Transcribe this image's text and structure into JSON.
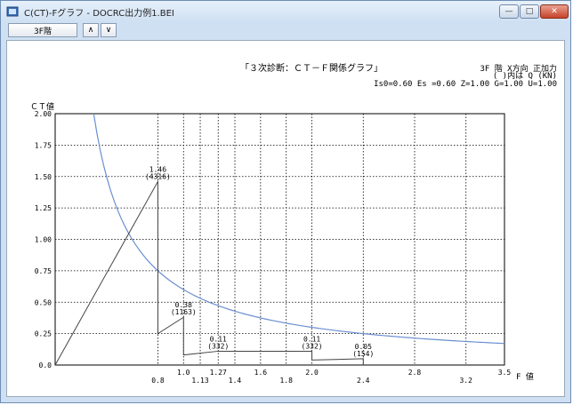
{
  "window": {
    "title": "C(CT)-Fグラフ - DOCRC出力例1.BEI",
    "minimize": "—",
    "maximize": "□",
    "close": "✕"
  },
  "toolbar": {
    "floor_button": "3F階",
    "up_button": "∧",
    "down_button": "∨"
  },
  "graph": {
    "heading": "「３次診断：ＣＴ－Ｆ関係グラフ」",
    "condition_line1": "3F 階 X方向 正加力",
    "condition_line2": "( )内は Q (KN)",
    "params": "Is0=0.60 Es =0.60 Z=1.00 G=1.00 U=1.00",
    "y_axis_label": "ＣＴ値",
    "x_axis_label": "F 値",
    "curve_color": "#6a8fd0"
  },
  "chart_data": {
    "type": "line",
    "xlabel": "F 値",
    "ylabel": "ＣＴ値",
    "xlim": [
      0,
      3.5
    ],
    "ylim": [
      0,
      2.0
    ],
    "grid": true,
    "x_ticks": [
      {
        "v": 0.8,
        "label": "0.8",
        "row": 1
      },
      {
        "v": 1.0,
        "label": "1.0",
        "row": 0
      },
      {
        "v": 1.13,
        "label": "1.13",
        "row": 1
      },
      {
        "v": 1.27,
        "label": "1.27",
        "row": 0
      },
      {
        "v": 1.4,
        "label": "1.4",
        "row": 1
      },
      {
        "v": 1.6,
        "label": "1.6",
        "row": 0
      },
      {
        "v": 1.8,
        "label": "1.8",
        "row": 1
      },
      {
        "v": 2.0,
        "label": "2.0",
        "row": 0
      },
      {
        "v": 2.4,
        "label": "2.4",
        "row": 1
      },
      {
        "v": 2.8,
        "label": "2.8",
        "row": 0
      },
      {
        "v": 3.2,
        "label": "3.2",
        "row": 1
      },
      {
        "v": 3.5,
        "label": "3.5",
        "row": 0
      }
    ],
    "y_ticks": [
      {
        "v": 0.0,
        "label": "0.0"
      },
      {
        "v": 0.25,
        "label": "0.25"
      },
      {
        "v": 0.5,
        "label": "0.50"
      },
      {
        "v": 0.75,
        "label": "0.75"
      },
      {
        "v": 1.0,
        "label": "1.00"
      },
      {
        "v": 1.25,
        "label": "1.25"
      },
      {
        "v": 1.5,
        "label": "1.50"
      },
      {
        "v": 1.75,
        "label": "1.75"
      },
      {
        "v": 2.0,
        "label": "2.00"
      }
    ],
    "demand_curve": {
      "k": 0.6
    },
    "step_polyline": [
      [
        0,
        0
      ],
      [
        0.8,
        1.46
      ],
      [
        0.8,
        0.25
      ],
      [
        1.0,
        0.38
      ],
      [
        1.0,
        0.08
      ],
      [
        1.27,
        0.11
      ],
      [
        2.0,
        0.11
      ],
      [
        2.0,
        0.04
      ],
      [
        2.4,
        0.05
      ],
      [
        2.4,
        0.0
      ]
    ],
    "annotations": [
      {
        "x": 0.8,
        "y": 1.46,
        "value": "1.46",
        "q": "(4316)"
      },
      {
        "x": 1.0,
        "y": 0.38,
        "value": "0.38",
        "q": "(1163)"
      },
      {
        "x": 1.27,
        "y": 0.11,
        "value": "0.11",
        "q": "(332)"
      },
      {
        "x": 2.0,
        "y": 0.11,
        "value": "0.11",
        "q": "(332)"
      },
      {
        "x": 2.4,
        "y": 0.05,
        "value": "0.05",
        "q": "(154)"
      }
    ]
  }
}
